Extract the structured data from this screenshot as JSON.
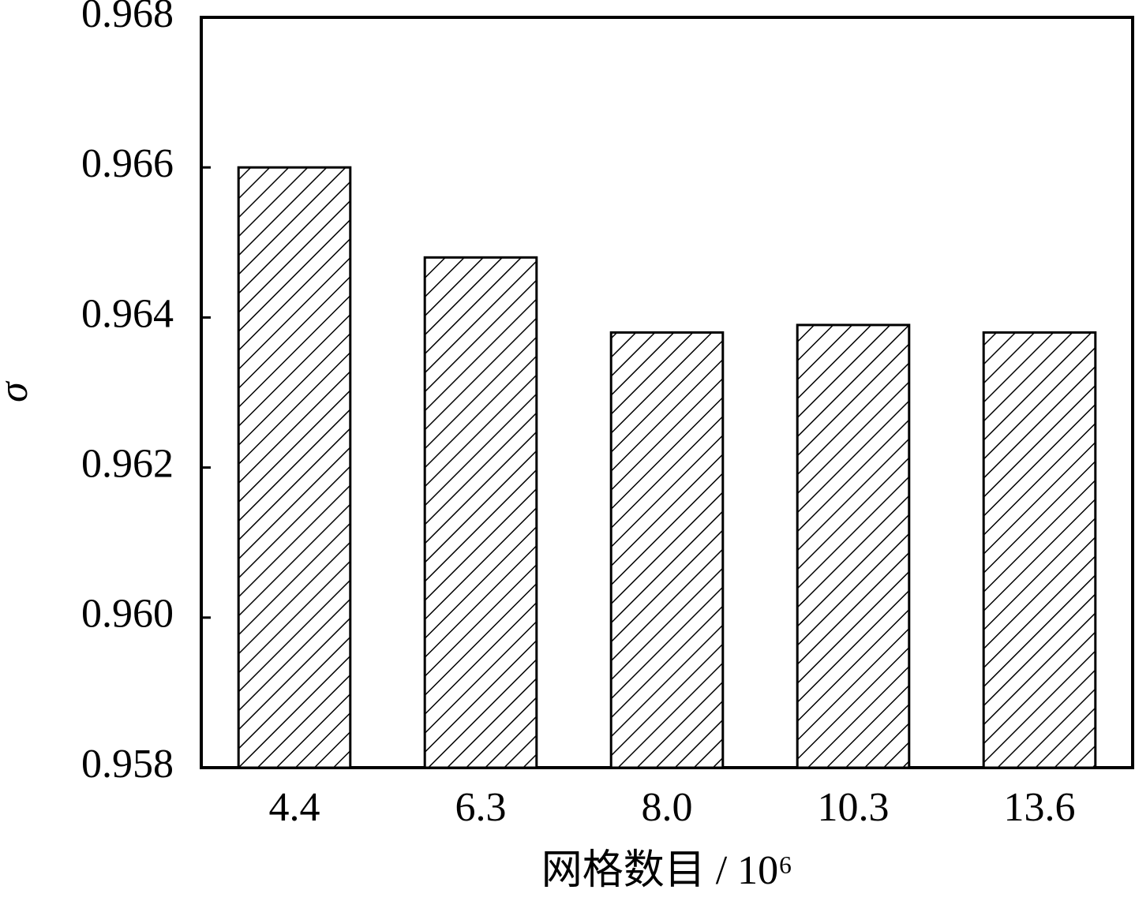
{
  "chart_data": {
    "type": "bar",
    "x_label": "网格数目 / 10⁶",
    "y_label": "σ",
    "categories": [
      "4.4",
      "6.3",
      "8.0",
      "10.3",
      "13.6"
    ],
    "values": [
      0.966,
      0.9648,
      0.9638,
      0.9639,
      0.9638
    ],
    "color": "#000000",
    "hatch": true,
    "ylim": [
      0.958,
      0.968
    ],
    "yticks": [
      0.958,
      {
        "value": 0.96,
        "label": "0.960"
      },
      0.962,
      0.964,
      0.966,
      0.968
    ],
    "grid": false
  }
}
